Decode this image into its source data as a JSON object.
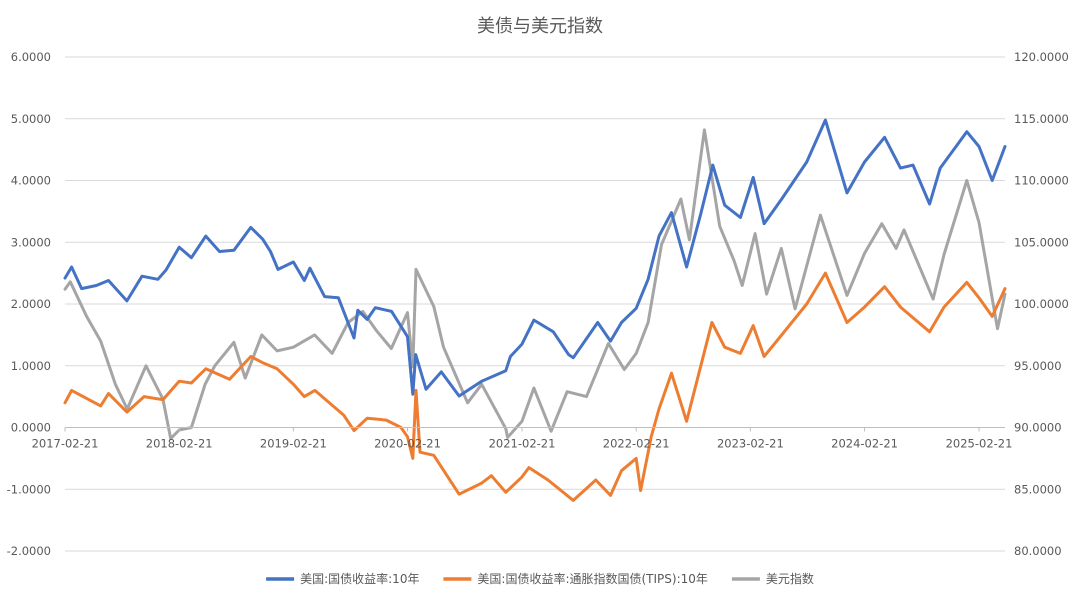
{
  "chart_data": {
    "type": "line",
    "title": "美债与美元指数",
    "y_left": {
      "min": -2,
      "max": 6,
      "step": 1,
      "tick_labels": [
        "-2.0000",
        "-1.0000",
        "0.0000",
        "1.0000",
        "2.0000",
        "3.0000",
        "4.0000",
        "5.0000",
        "6.0000"
      ]
    },
    "y_right": {
      "min": 80,
      "max": 120,
      "step": 5,
      "tick_labels": [
        "80.0000",
        "85.0000",
        "90.0000",
        "95.0000",
        "100.0000",
        "105.0000",
        "110.0000",
        "115.0000",
        "120.0000"
      ]
    },
    "x_domain": [
      "2017-02-21",
      "2025-05-15"
    ],
    "x_ticks": [
      "2017-02-21",
      "2018-02-21",
      "2019-02-21",
      "2020-02-21",
      "2021-02-21",
      "2022-02-21",
      "2023-02-21",
      "2024-02-21",
      "2025-02-21"
    ],
    "x_axis_at": 0,
    "grid": "horizontal",
    "legend_position": "bottom",
    "series": [
      {
        "name": "美国:国债收益率:10年",
        "axis": "left",
        "color": "#4472C4",
        "points": [
          [
            "2017-02-21",
            2.42
          ],
          [
            "2017-03-14",
            2.6
          ],
          [
            "2017-04-15",
            2.25
          ],
          [
            "2017-06-01",
            2.3
          ],
          [
            "2017-07-10",
            2.38
          ],
          [
            "2017-09-07",
            2.05
          ],
          [
            "2017-10-25",
            2.45
          ],
          [
            "2017-12-15",
            2.4
          ],
          [
            "2018-01-10",
            2.55
          ],
          [
            "2018-02-21",
            2.92
          ],
          [
            "2018-04-01",
            2.75
          ],
          [
            "2018-05-17",
            3.1
          ],
          [
            "2018-06-30",
            2.85
          ],
          [
            "2018-08-15",
            2.87
          ],
          [
            "2018-10-08",
            3.24
          ],
          [
            "2018-11-15",
            3.05
          ],
          [
            "2018-12-10",
            2.85
          ],
          [
            "2019-01-03",
            2.56
          ],
          [
            "2019-02-21",
            2.68
          ],
          [
            "2019-03-28",
            2.38
          ],
          [
            "2019-04-15",
            2.58
          ],
          [
            "2019-06-01",
            2.12
          ],
          [
            "2019-07-15",
            2.1
          ],
          [
            "2019-09-03",
            1.45
          ],
          [
            "2019-09-15",
            1.9
          ],
          [
            "2019-10-15",
            1.75
          ],
          [
            "2019-11-10",
            1.94
          ],
          [
            "2020-01-01",
            1.88
          ],
          [
            "2020-02-21",
            1.47
          ],
          [
            "2020-03-09",
            0.54
          ],
          [
            "2020-03-18",
            1.18
          ],
          [
            "2020-04-20",
            0.62
          ],
          [
            "2020-06-08",
            0.9
          ],
          [
            "2020-08-04",
            0.51
          ],
          [
            "2020-10-15",
            0.75
          ],
          [
            "2020-12-31",
            0.92
          ],
          [
            "2021-01-15",
            1.15
          ],
          [
            "2021-02-21",
            1.35
          ],
          [
            "2021-03-31",
            1.74
          ],
          [
            "2021-06-01",
            1.55
          ],
          [
            "2021-07-20",
            1.18
          ],
          [
            "2021-08-04",
            1.13
          ],
          [
            "2021-10-21",
            1.7
          ],
          [
            "2021-12-01",
            1.4
          ],
          [
            "2022-01-05",
            1.7
          ],
          [
            "2022-02-21",
            1.93
          ],
          [
            "2022-03-31",
            2.4
          ],
          [
            "2022-05-05",
            3.1
          ],
          [
            "2022-06-14",
            3.48
          ],
          [
            "2022-08-01",
            2.6
          ],
          [
            "2022-09-15",
            3.45
          ],
          [
            "2022-10-24",
            4.25
          ],
          [
            "2022-12-01",
            3.6
          ],
          [
            "2023-01-20",
            3.4
          ],
          [
            "2023-03-02",
            4.05
          ],
          [
            "2023-04-06",
            3.3
          ],
          [
            "2023-06-01",
            3.7
          ],
          [
            "2023-08-20",
            4.3
          ],
          [
            "2023-10-19",
            4.98
          ],
          [
            "2023-12-27",
            3.8
          ],
          [
            "2024-02-21",
            4.3
          ],
          [
            "2024-04-25",
            4.7
          ],
          [
            "2024-06-15",
            4.2
          ],
          [
            "2024-07-25",
            4.25
          ],
          [
            "2024-09-16",
            3.62
          ],
          [
            "2024-10-20",
            4.2
          ],
          [
            "2025-01-13",
            4.79
          ],
          [
            "2025-02-21",
            4.55
          ],
          [
            "2025-04-04",
            4.0
          ],
          [
            "2025-05-15",
            4.55
          ]
        ]
      },
      {
        "name": "美国:国债收益率:通胀指数国债(TIPS):10年",
        "axis": "left",
        "color": "#ED7D31",
        "points": [
          [
            "2017-02-21",
            0.4
          ],
          [
            "2017-03-14",
            0.6
          ],
          [
            "2017-06-15",
            0.35
          ],
          [
            "2017-07-10",
            0.55
          ],
          [
            "2017-09-07",
            0.25
          ],
          [
            "2017-11-01",
            0.5
          ],
          [
            "2017-12-31",
            0.45
          ],
          [
            "2018-02-21",
            0.75
          ],
          [
            "2018-04-01",
            0.72
          ],
          [
            "2018-05-17",
            0.95
          ],
          [
            "2018-08-01",
            0.78
          ],
          [
            "2018-10-08",
            1.15
          ],
          [
            "2018-11-15",
            1.05
          ],
          [
            "2018-12-31",
            0.95
          ],
          [
            "2019-02-21",
            0.7
          ],
          [
            "2019-03-28",
            0.5
          ],
          [
            "2019-05-01",
            0.6
          ],
          [
            "2019-08-01",
            0.2
          ],
          [
            "2019-09-03",
            -0.05
          ],
          [
            "2019-10-15",
            0.15
          ],
          [
            "2019-12-15",
            0.12
          ],
          [
            "2020-01-31",
            0.0
          ],
          [
            "2020-02-21",
            -0.15
          ],
          [
            "2020-03-09",
            -0.5
          ],
          [
            "2020-03-19",
            0.6
          ],
          [
            "2020-04-01",
            -0.4
          ],
          [
            "2020-05-15",
            -0.45
          ],
          [
            "2020-08-04",
            -1.08
          ],
          [
            "2020-10-15",
            -0.9
          ],
          [
            "2020-11-15",
            -0.78
          ],
          [
            "2020-12-31",
            -1.05
          ],
          [
            "2021-02-21",
            -0.8
          ],
          [
            "2021-03-15",
            -0.65
          ],
          [
            "2021-05-15",
            -0.85
          ],
          [
            "2021-08-04",
            -1.18
          ],
          [
            "2021-10-15",
            -0.85
          ],
          [
            "2021-12-01",
            -1.1
          ],
          [
            "2022-01-05",
            -0.7
          ],
          [
            "2022-02-21",
            -0.5
          ],
          [
            "2022-03-07",
            -1.02
          ],
          [
            "2022-04-10",
            -0.15
          ],
          [
            "2022-05-05",
            0.3
          ],
          [
            "2022-06-14",
            0.88
          ],
          [
            "2022-08-01",
            0.1
          ],
          [
            "2022-10-21",
            1.7
          ],
          [
            "2022-12-01",
            1.3
          ],
          [
            "2023-01-20",
            1.2
          ],
          [
            "2023-03-02",
            1.65
          ],
          [
            "2023-04-06",
            1.15
          ],
          [
            "2023-06-01",
            1.5
          ],
          [
            "2023-08-20",
            2.0
          ],
          [
            "2023-10-19",
            2.5
          ],
          [
            "2023-12-27",
            1.7
          ],
          [
            "2024-02-21",
            1.95
          ],
          [
            "2024-04-25",
            2.28
          ],
          [
            "2024-06-15",
            1.95
          ],
          [
            "2024-09-16",
            1.55
          ],
          [
            "2024-11-01",
            1.95
          ],
          [
            "2025-01-13",
            2.35
          ],
          [
            "2025-02-21",
            2.1
          ],
          [
            "2025-04-04",
            1.8
          ],
          [
            "2025-05-15",
            2.25
          ]
        ]
      },
      {
        "name": "美元指数",
        "axis": "right",
        "color": "#A5A5A5",
        "points": [
          [
            "2017-02-21",
            101.2
          ],
          [
            "2017-03-10",
            101.8
          ],
          [
            "2017-05-01",
            99.0
          ],
          [
            "2017-06-15",
            97.0
          ],
          [
            "2017-08-01",
            93.5
          ],
          [
            "2017-09-08",
            91.5
          ],
          [
            "2017-11-07",
            95.0
          ],
          [
            "2017-12-31",
            92.3
          ],
          [
            "2018-01-25",
            89.1
          ],
          [
            "2018-02-21",
            89.8
          ],
          [
            "2018-04-01",
            90.0
          ],
          [
            "2018-05-15",
            93.5
          ],
          [
            "2018-06-15",
            95.0
          ],
          [
            "2018-08-15",
            96.9
          ],
          [
            "2018-09-20",
            94.0
          ],
          [
            "2018-11-12",
            97.5
          ],
          [
            "2018-12-31",
            96.2
          ],
          [
            "2019-02-21",
            96.5
          ],
          [
            "2019-04-30",
            97.5
          ],
          [
            "2019-06-25",
            96.0
          ],
          [
            "2019-08-15",
            98.5
          ],
          [
            "2019-10-01",
            99.4
          ],
          [
            "2019-11-15",
            97.8
          ],
          [
            "2019-12-31",
            96.4
          ],
          [
            "2020-02-21",
            99.3
          ],
          [
            "2020-03-09",
            94.9
          ],
          [
            "2020-03-19",
            102.8
          ],
          [
            "2020-05-15",
            99.8
          ],
          [
            "2020-06-15",
            96.5
          ],
          [
            "2020-08-31",
            92.0
          ],
          [
            "2020-10-15",
            93.5
          ],
          [
            "2020-12-31",
            89.9
          ],
          [
            "2021-01-06",
            89.2
          ],
          [
            "2021-02-21",
            90.5
          ],
          [
            "2021-03-31",
            93.2
          ],
          [
            "2021-05-25",
            89.7
          ],
          [
            "2021-07-15",
            92.9
          ],
          [
            "2021-09-15",
            92.5
          ],
          [
            "2021-11-24",
            96.8
          ],
          [
            "2022-01-14",
            94.7
          ],
          [
            "2022-02-21",
            96.0
          ],
          [
            "2022-03-31",
            98.5
          ],
          [
            "2022-05-13",
            104.8
          ],
          [
            "2022-07-14",
            108.5
          ],
          [
            "2022-08-10",
            105.2
          ],
          [
            "2022-09-27",
            114.1
          ],
          [
            "2022-11-15",
            106.3
          ],
          [
            "2022-12-31",
            103.5
          ],
          [
            "2023-01-26",
            101.5
          ],
          [
            "2023-03-08",
            105.7
          ],
          [
            "2023-04-14",
            100.8
          ],
          [
            "2023-05-31",
            104.5
          ],
          [
            "2023-07-14",
            99.6
          ],
          [
            "2023-10-03",
            107.2
          ],
          [
            "2023-12-27",
            100.7
          ],
          [
            "2024-02-21",
            104.1
          ],
          [
            "2024-04-16",
            106.5
          ],
          [
            "2024-06-01",
            104.5
          ],
          [
            "2024-06-26",
            106.0
          ],
          [
            "2024-09-27",
            100.4
          ],
          [
            "2024-11-01",
            104.0
          ],
          [
            "2025-01-13",
            110.0
          ],
          [
            "2025-02-21",
            106.6
          ],
          [
            "2025-04-21",
            98.0
          ],
          [
            "2025-05-15",
            100.8
          ]
        ]
      }
    ]
  }
}
